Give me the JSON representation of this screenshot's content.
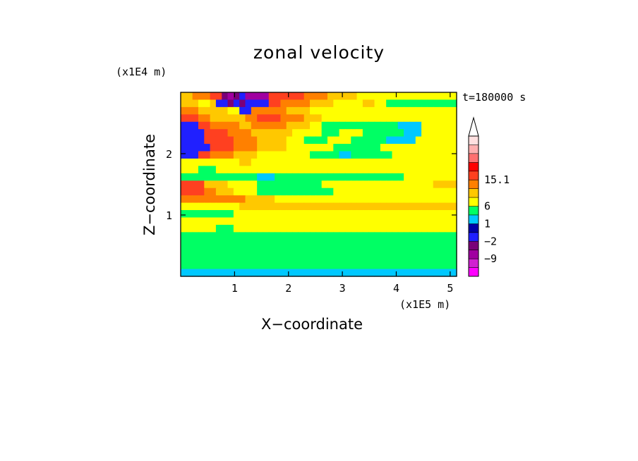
{
  "chart_data": {
    "type": "heatmap",
    "title": "zonal velocity",
    "xlabel": "X−coordinate",
    "ylabel": "Z−coordinate",
    "x_unit": "(x1E5 m)",
    "y_unit": "(x1E4 m)",
    "time_label": "t=180000 s",
    "x_ticks": [
      "1",
      "2",
      "3",
      "4",
      "5"
    ],
    "x_tick_values": [
      1,
      2,
      3,
      4,
      5
    ],
    "y_ticks": [
      "1",
      "2"
    ],
    "y_tick_values": [
      1,
      2
    ],
    "xlim": [
      0,
      5.12
    ],
    "ylim": [
      0,
      3.0
    ],
    "colorbar": {
      "tick_labels": [
        "15.1",
        "6",
        "1",
        "−2",
        "−9"
      ],
      "tick_level_index": [
        11,
        8,
        6,
        4,
        2
      ],
      "levels_colors": [
        "#ff00ff",
        "#d020d0",
        "#a000a0",
        "#7a0078",
        "#2020ff",
        "#0000a8",
        "#00c8ff",
        "#00ff64",
        "#ffff00",
        "#ffc800",
        "#ff8000",
        "#ff4020",
        "#ff0000",
        "#ff7070",
        "#ffb0b0",
        "#ffe0e0"
      ],
      "extend": "max"
    },
    "field_rows_top_to_bottom": [
      "44555668987999966666655554444433333333333333333",
      "44433477878777766555554444333334433222222222222",
      "55544444337755555544443333333333333333333333333",
      "66655444444556666555544433333333333333333333333",
      "77766555554455555544443322222222222221111333333",
      "77776666555544444443333322233332222222111333333",
      "77776666655554444433322223333222222111113333333",
      "77777666655554444433333333222222223333333333333",
      "77766555544443333333332222211222222233333333333",
      "33333333334433333333333333333333333333333333333",
      "33322233333333333333333333333333333333333333333",
      "22222222222221112222222222222222222222333333333",
      "66664444333332222222222233333333333333333334444",
      "66665544433332222222222222333333333333333333333",
      "55555555555444443333333333333333333333333333333",
      "33333333334444444444444444444444444444444444444",
      "22222222233333333333333333333333333333333333333",
      "33333333333333333333333333333333333333333333333",
      "33333322233333333333333333333333333333333333333",
      "22222222222222222222222222222222222222222222222",
      "22222222222222222222222222222222222222222222222",
      "22222222222222222222222222222222222222222222222",
      "22222222222222222222222222222222222222222222222",
      "22222222222222222222222222222222222222222222222",
      "11111111111111111111111111111111111111111111111"
    ],
    "field_palette": {
      "0": "#0000a8",
      "1": "#00c8ff",
      "2": "#00ff64",
      "3": "#ffff00",
      "4": "#ffc800",
      "5": "#ff8000",
      "6": "#ff4020",
      "7": "#2020ff",
      "8": "#7a0078",
      "9": "#a000a0"
    }
  }
}
